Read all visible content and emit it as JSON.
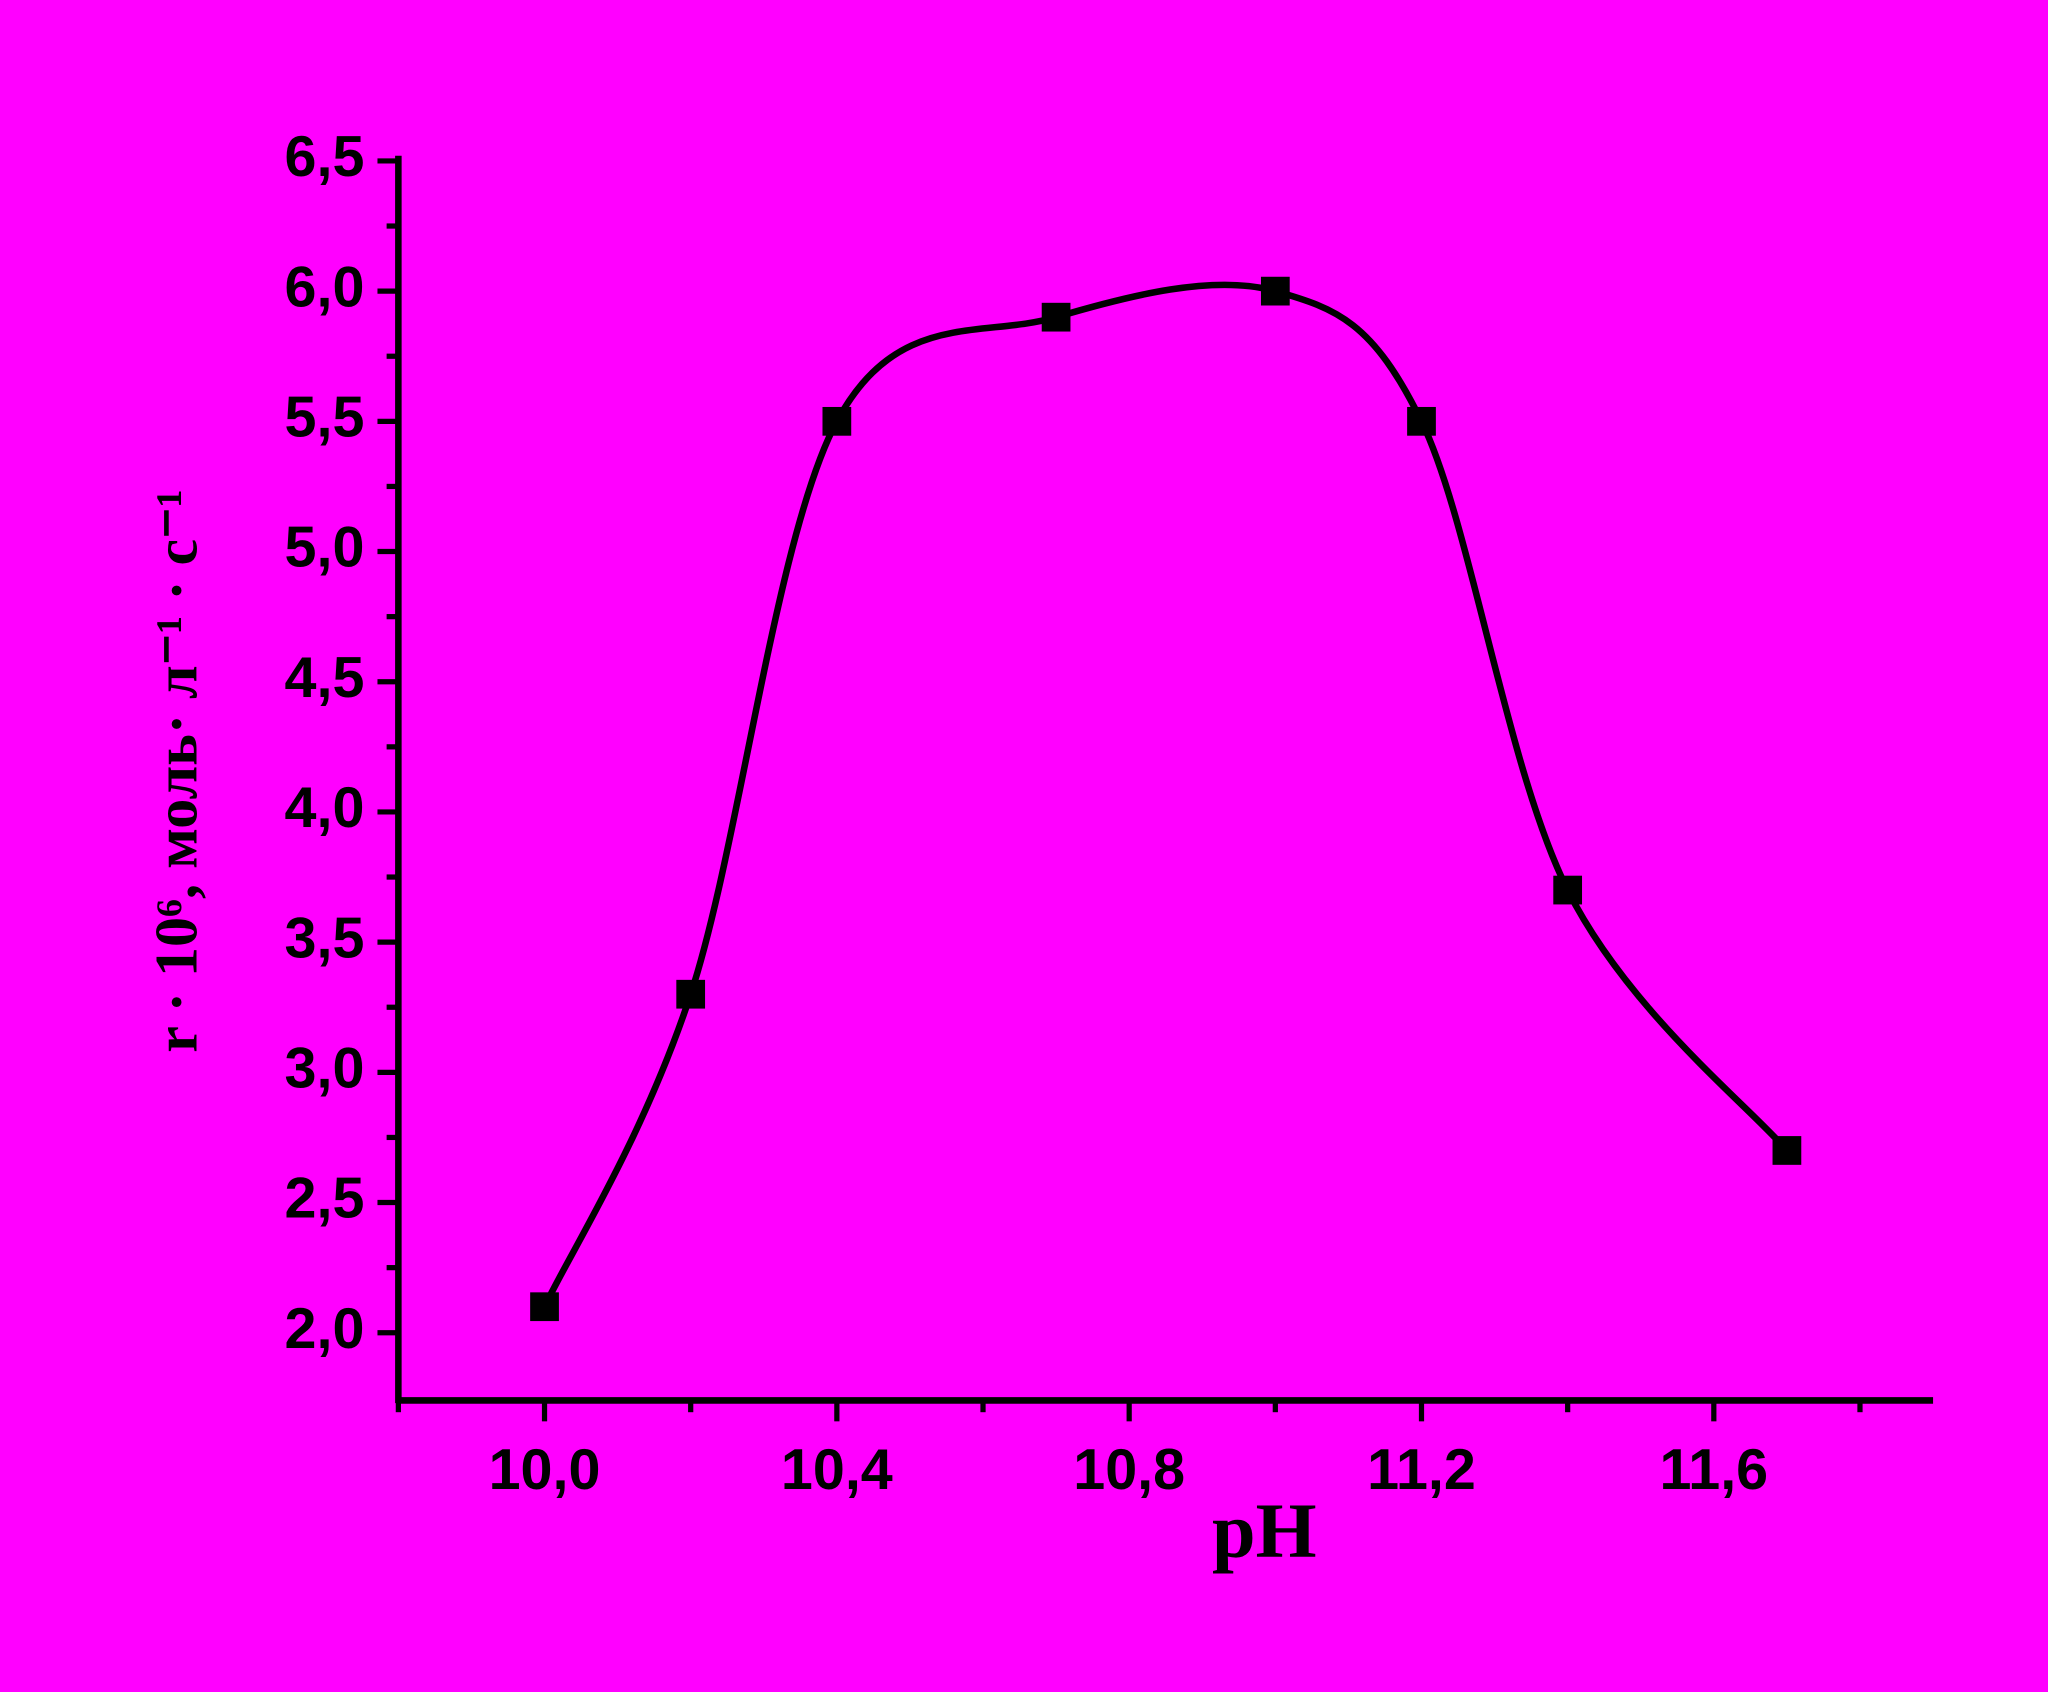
{
  "chart_data": {
    "type": "scatter",
    "x_label": "pH",
    "y_label": "r · 10⁶, моль· л⁻¹ · с⁻¹",
    "x": [
      10.0,
      10.2,
      10.4,
      10.7,
      11.0,
      11.2,
      11.4,
      11.7
    ],
    "values": [
      2.1,
      3.3,
      5.5,
      5.9,
      6.0,
      5.5,
      3.7,
      2.7
    ],
    "color": "#000000",
    "smooth_line": true,
    "xlim": [
      9.8,
      11.9
    ],
    "ylim": [
      1.74,
      6.5
    ],
    "xticks": [
      {
        "value": 10.0,
        "label": "10,0"
      },
      {
        "value": 10.4,
        "label": "10,4"
      },
      {
        "value": 10.8,
        "label": "10,8"
      },
      {
        "value": 11.2,
        "label": "11,2"
      },
      {
        "value": 11.6,
        "label": "11,6"
      }
    ],
    "xminorticks": [
      9.8,
      10.2,
      10.6,
      11.0,
      11.4,
      11.8
    ],
    "yticks": [
      {
        "value": 2.0,
        "label": "2,0"
      },
      {
        "value": 2.5,
        "label": "2,5"
      },
      {
        "value": 3.0,
        "label": "3,0"
      },
      {
        "value": 3.5,
        "label": "3,5"
      },
      {
        "value": 4.0,
        "label": "4,0"
      },
      {
        "value": 4.5,
        "label": "4,5"
      },
      {
        "value": 5.0,
        "label": "5,0"
      },
      {
        "value": 5.5,
        "label": "5,5"
      },
      {
        "value": 6.0,
        "label": "6,0"
      },
      {
        "value": 6.5,
        "label": "6,5"
      }
    ],
    "yminorticks": [
      2.25,
      2.75,
      3.25,
      3.75,
      4.25,
      4.75,
      5.25,
      5.75,
      6.25
    ]
  }
}
